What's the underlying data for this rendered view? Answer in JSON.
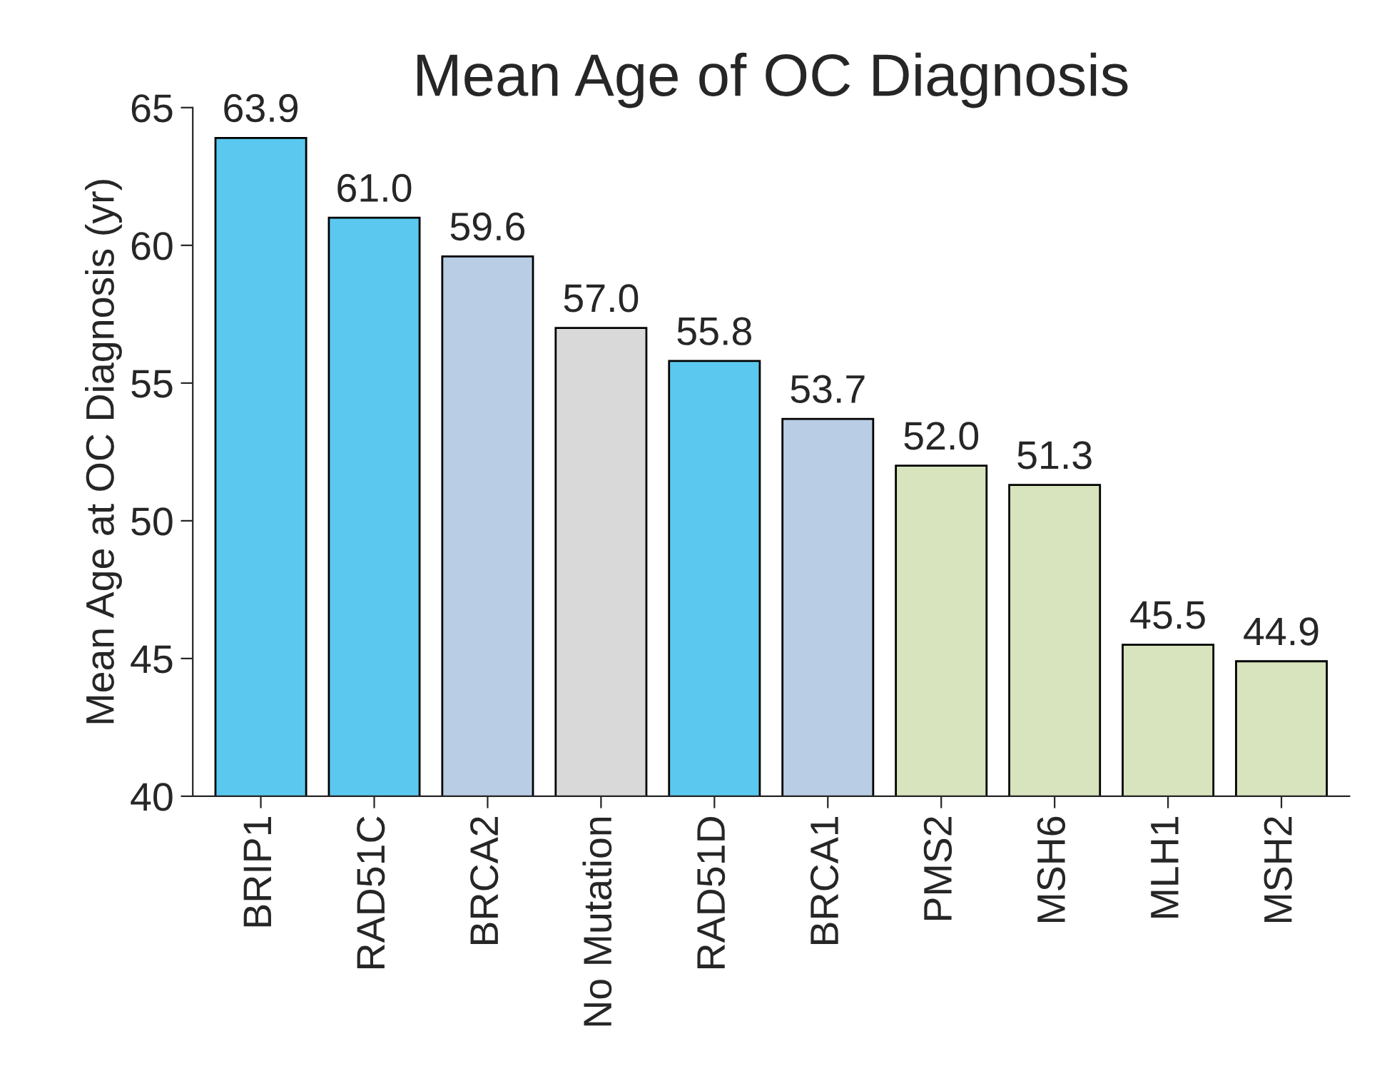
{
  "chart_data": {
    "type": "bar",
    "title": "Mean Age of OC Diagnosis",
    "ylabel": "Mean Age at OC Diagnosis (yr)",
    "categories": [
      "BRIP1",
      "RAD51C",
      "BRCA2",
      "No Mutation",
      "RAD51D",
      "BRCA1",
      "PMS2",
      "MSH6",
      "MLH1",
      "MSH2"
    ],
    "values": [
      63.9,
      61.0,
      59.6,
      57.0,
      55.8,
      53.7,
      52.0,
      51.3,
      45.5,
      44.9
    ],
    "colors": [
      "#5bc8ef",
      "#5bc8ef",
      "#b9cde5",
      "#d9d9d9",
      "#5bc8ef",
      "#b9cde5",
      "#d7e4bd",
      "#d7e4bd",
      "#d7e4bd",
      "#d7e4bd"
    ],
    "value_labels": [
      "63.9",
      "61.0",
      "59.6",
      "57.0",
      "55.8",
      "53.7",
      "52.0",
      "51.3",
      "45.5",
      "44.9"
    ],
    "ylim": [
      40,
      65
    ],
    "yticks": [
      40,
      45,
      50,
      55,
      60,
      65
    ],
    "grid": false,
    "legend": false
  }
}
